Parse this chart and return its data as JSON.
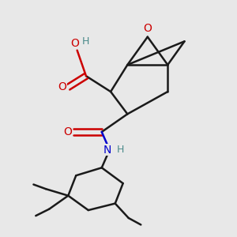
{
  "background_color": "#e8e8e8",
  "bond_color": "#1a1a1a",
  "oxygen_color": "#cc0000",
  "nitrogen_color": "#0000cc",
  "hydrogen_color": "#4a8a8a",
  "line_width": 1.8,
  "fig_width": 3.0,
  "fig_height": 3.0,
  "dpi": 100,
  "xlim": [
    0.0,
    1.0
  ],
  "ylim": [
    0.0,
    1.0
  ]
}
